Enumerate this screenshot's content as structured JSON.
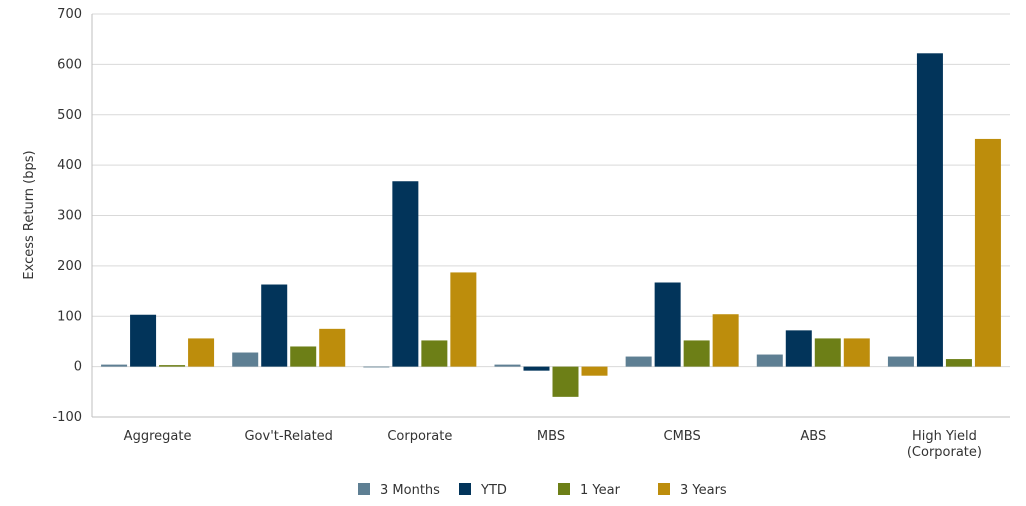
{
  "chart_data": {
    "type": "bar",
    "title": "",
    "xlabel": "",
    "ylabel": "Excess Return (bps)",
    "ylim": [
      -100,
      700
    ],
    "yticks": [
      -100,
      0,
      100,
      200,
      300,
      400,
      500,
      600,
      700
    ],
    "grid": true,
    "legend_position": "bottom",
    "categories": [
      [
        "Aggregate"
      ],
      [
        "Gov't-Related"
      ],
      [
        "Corporate"
      ],
      [
        "MBS"
      ],
      [
        "CMBS"
      ],
      [
        "ABS"
      ],
      [
        "High Yield",
        "(Corporate)"
      ]
    ],
    "series": [
      {
        "name": "3 Months",
        "color": "#5e7f93",
        "values": [
          4,
          28,
          0,
          4,
          20,
          24,
          20
        ]
      },
      {
        "name": "YTD",
        "color": "#02345a",
        "values": [
          103,
          163,
          368,
          -8,
          167,
          72,
          622
        ]
      },
      {
        "name": "1 Year",
        "color": "#6d7f17",
        "values": [
          3,
          40,
          52,
          -60,
          52,
          56,
          15
        ]
      },
      {
        "name": "3 Years",
        "color": "#bd8d0c",
        "values": [
          56,
          75,
          187,
          -18,
          104,
          56,
          452
        ]
      }
    ]
  }
}
